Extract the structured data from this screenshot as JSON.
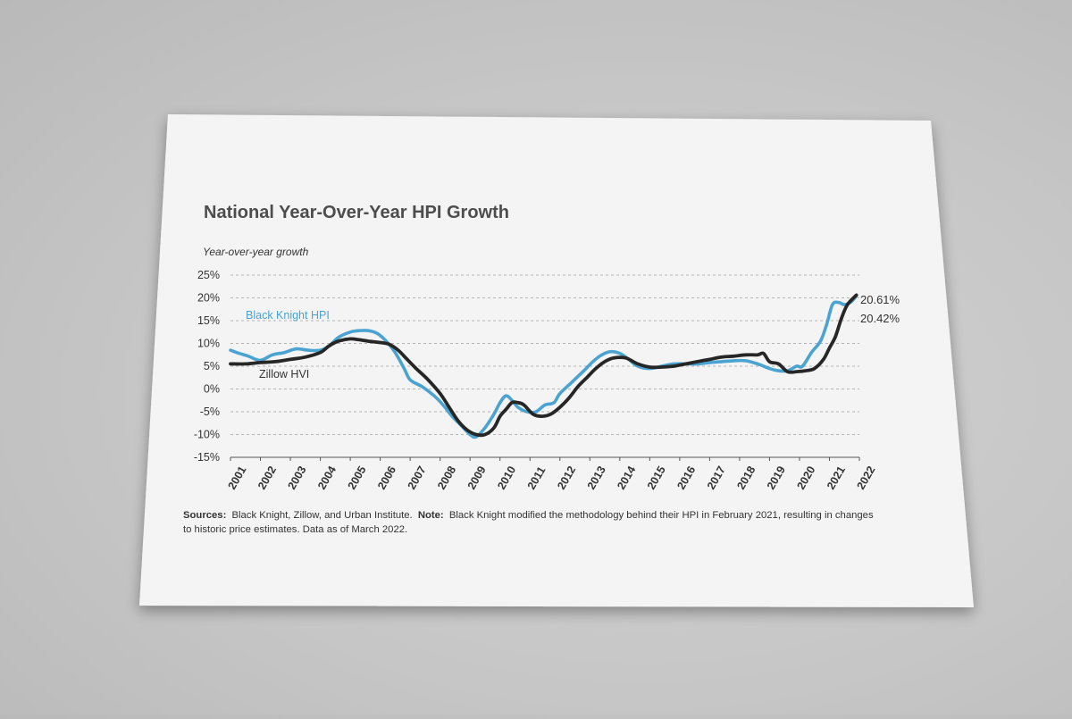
{
  "chart_data": {
    "type": "line",
    "title": "National Year-Over-Year HPI Growth",
    "ylabel": "Year-over-year growth",
    "xlabel": "",
    "ylim": [
      -15,
      25
    ],
    "xlim": [
      2001,
      2022
    ],
    "y_ticks": [
      "25%",
      "20%",
      "15%",
      "10%",
      "5%",
      "0%",
      "-5%",
      "-10%",
      "-15%"
    ],
    "y_tick_values": [
      25,
      20,
      15,
      10,
      5,
      0,
      -5,
      -10,
      -15
    ],
    "x_ticks": [
      "2001",
      "2002",
      "2003",
      "2004",
      "2005",
      "2006",
      "2007",
      "2008",
      "2009",
      "2010",
      "2011",
      "2012",
      "2013",
      "2014",
      "2015",
      "2016",
      "2017",
      "2018",
      "2019",
      "2020",
      "2021",
      "2022"
    ],
    "x_tick_values": [
      2001,
      2002,
      2003,
      2004,
      2005,
      2006,
      2007,
      2008,
      2009,
      2010,
      2011,
      2012,
      2013,
      2014,
      2015,
      2016,
      2017,
      2018,
      2019,
      2020,
      2021,
      2022
    ],
    "grid": "horizontal dashed",
    "series": [
      {
        "name": "Black Knight HPI",
        "color": "#4ba3d1",
        "end_label": "20.42%",
        "x": [
          2001.0,
          2001.3,
          2001.6,
          2002.0,
          2002.4,
          2002.8,
          2003.2,
          2003.6,
          2004.0,
          2004.3,
          2004.6,
          2005.0,
          2005.3,
          2005.6,
          2005.9,
          2006.2,
          2006.5,
          2006.8,
          2007.0,
          2007.4,
          2007.8,
          2008.1,
          2008.4,
          2008.7,
          2009.0,
          2009.2,
          2009.5,
          2009.8,
          2010.0,
          2010.2,
          2010.4,
          2010.6,
          2010.9,
          2011.2,
          2011.5,
          2011.8,
          2012.0,
          2012.4,
          2012.8,
          2013.1,
          2013.4,
          2013.7,
          2014.0,
          2014.3,
          2014.6,
          2015.0,
          2015.4,
          2015.8,
          2016.2,
          2016.6,
          2017.0,
          2017.4,
          2017.8,
          2018.2,
          2018.6,
          2019.0,
          2019.3,
          2019.6,
          2019.9,
          2020.1,
          2020.4,
          2020.7,
          2020.9,
          2021.1,
          2021.3,
          2021.5,
          2021.7,
          2021.9
        ],
        "values": [
          8.5,
          7.8,
          7.2,
          6.3,
          7.5,
          8.0,
          8.8,
          8.5,
          8.5,
          9.5,
          11.3,
          12.5,
          12.8,
          12.8,
          12.2,
          10.5,
          8.0,
          4.5,
          2.0,
          0.5,
          -1.5,
          -3.5,
          -6.0,
          -8.0,
          -10.0,
          -10.5,
          -8.5,
          -5.5,
          -3.0,
          -1.5,
          -2.5,
          -4.0,
          -5.0,
          -5.0,
          -3.5,
          -3.0,
          -1.0,
          1.5,
          4.0,
          6.0,
          7.5,
          8.2,
          7.8,
          6.5,
          5.0,
          4.5,
          5.0,
          5.5,
          5.5,
          5.5,
          5.8,
          6.0,
          6.2,
          6.2,
          5.5,
          4.5,
          4.0,
          4.0,
          5.0,
          5.0,
          8.0,
          10.5,
          14.0,
          18.5,
          19.0,
          18.5,
          19.0,
          20.42
        ]
      },
      {
        "name": "Zillow HVI",
        "color": "#262626",
        "end_label": "20.61%",
        "x": [
          2001.0,
          2001.5,
          2002.0,
          2002.5,
          2003.0,
          2003.5,
          2004.0,
          2004.3,
          2004.6,
          2005.0,
          2005.3,
          2005.6,
          2006.0,
          2006.3,
          2006.6,
          2006.9,
          2007.2,
          2007.6,
          2008.0,
          2008.3,
          2008.6,
          2008.9,
          2009.2,
          2009.5,
          2009.8,
          2010.0,
          2010.2,
          2010.4,
          2010.6,
          2010.8,
          2011.1,
          2011.4,
          2011.7,
          2012.0,
          2012.3,
          2012.6,
          2012.9,
          2013.2,
          2013.5,
          2013.8,
          2014.2,
          2014.6,
          2015.0,
          2015.4,
          2015.8,
          2016.2,
          2016.6,
          2017.0,
          2017.4,
          2017.8,
          2018.2,
          2018.6,
          2018.8,
          2019.0,
          2019.3,
          2019.6,
          2019.9,
          2020.2,
          2020.5,
          2020.8,
          2021.0,
          2021.2,
          2021.4,
          2021.6,
          2021.9
        ],
        "values": [
          5.5,
          5.5,
          5.8,
          6.0,
          6.5,
          7.0,
          8.0,
          9.5,
          10.5,
          11.0,
          10.8,
          10.5,
          10.2,
          9.8,
          8.5,
          6.5,
          4.5,
          2.0,
          -1.0,
          -4.0,
          -7.0,
          -9.0,
          -10.0,
          -10.0,
          -8.5,
          -6.0,
          -4.5,
          -3.0,
          -3.0,
          -3.5,
          -5.5,
          -6.0,
          -5.5,
          -4.0,
          -2.0,
          0.5,
          2.5,
          4.5,
          6.0,
          6.8,
          6.8,
          5.5,
          4.8,
          4.8,
          5.0,
          5.5,
          6.0,
          6.5,
          7.0,
          7.2,
          7.5,
          7.5,
          7.8,
          6.0,
          5.5,
          3.8,
          3.8,
          4.0,
          4.5,
          6.5,
          9.0,
          11.5,
          15.5,
          18.5,
          20.61
        ]
      }
    ],
    "annotations": [
      {
        "text": "Black Knight HPI",
        "series": 0
      },
      {
        "text": "Zillow HVI",
        "series": 1
      }
    ]
  },
  "footnote": {
    "sources_label": "Sources:",
    "sources_text": "Black Knight, Zillow, and Urban Institute.",
    "note_label": "Note:",
    "note_text_line1": "Black Knight modified the methodology behind their HPI in February 2021, resulting in changes",
    "note_text_line2": "to historic price estimates. Data as of March 2022."
  }
}
